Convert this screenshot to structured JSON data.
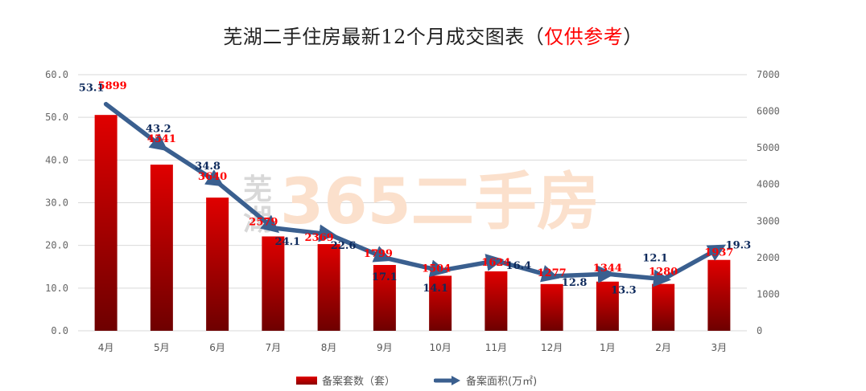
{
  "title": {
    "main": "芜湖二手住房最新12个月成交图表",
    "note_open": "（",
    "note": "仅供参考",
    "note_close": "）"
  },
  "watermark": {
    "small": "芜湖",
    "large": "365二手房"
  },
  "legend": {
    "bar_label": "备案套数（套）",
    "line_label": "备案面积(万㎡)"
  },
  "colors": {
    "bar_top": "#e00000",
    "bar_bottom": "#6e0000",
    "line": "#3a5f8f",
    "bar_label": "#ff0000",
    "line_label": "#0e2a5c",
    "grid": "#d9d9d9"
  },
  "chart_data": {
    "type": "bar+line",
    "title": "芜湖二手住房最新12个月成交图表（仅供参考）",
    "categories": [
      "4月",
      "5月",
      "6月",
      "7月",
      "8月",
      "9月",
      "10月",
      "11月",
      "12月",
      "1月",
      "2月",
      "3月"
    ],
    "series": [
      {
        "name": "备案套数（套）",
        "type": "bar",
        "axis": "right",
        "values": [
          5899,
          4541,
          3640,
          2579,
          2369,
          1799,
          1504,
          1624,
          1277,
          1344,
          1280,
          1937
        ]
      },
      {
        "name": "备案面积(万㎡)",
        "type": "line",
        "axis": "left",
        "values": [
          53.1,
          43.2,
          34.8,
          24.1,
          22.6,
          17.1,
          14.1,
          16.4,
          12.8,
          13.3,
          12.1,
          19.3
        ]
      }
    ],
    "left_axis": {
      "ylim": [
        0,
        60
      ],
      "ticks": [
        "0.0",
        "10.0",
        "20.0",
        "30.0",
        "40.0",
        "50.0",
        "60.0"
      ]
    },
    "right_axis": {
      "ylim": [
        0,
        7000
      ],
      "ticks": [
        "0",
        "1000",
        "2000",
        "3000",
        "4000",
        "5000",
        "6000",
        "7000"
      ]
    },
    "grid": true,
    "legend_position": "bottom"
  }
}
